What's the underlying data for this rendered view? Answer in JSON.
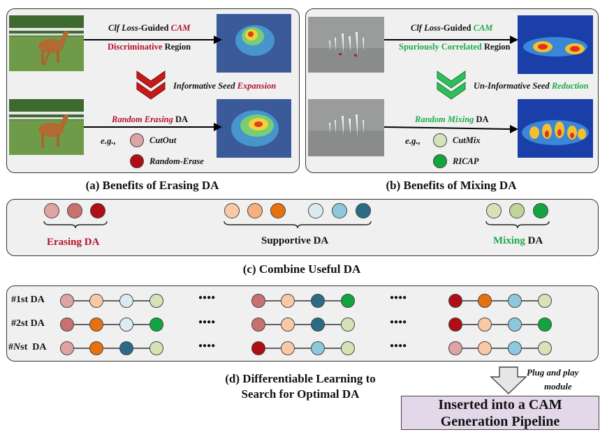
{
  "panel_a": {
    "caption": "(a) Benefits of Erasing DA",
    "top_line1": {
      "p1": "Clf Loss",
      "p2": "-Guided ",
      "p3": "CAM"
    },
    "top_line2": {
      "p1": "Discriminative",
      "p2": " Region"
    },
    "middle": {
      "p1": "Informative Seed ",
      "p2": "Expansion"
    },
    "bottom_line1": {
      "p1": "Random Erasing",
      "p2": " DA"
    },
    "eg": "e.g.,",
    "options": [
      "CutOut",
      "Random-Erase"
    ]
  },
  "panel_b": {
    "caption": "(b) Benefits of Mixing DA",
    "top_line1": {
      "p1": "Clf Loss",
      "p2": "-Guided ",
      "p3": "CAM"
    },
    "top_line2": {
      "p1": "Spuriously Correlated",
      "p2": " Region"
    },
    "middle": {
      "p1": "Un-Informative Seed ",
      "p2": "Reduction"
    },
    "bottom_line1": {
      "p1": "Random Mixing",
      "p2": " DA"
    },
    "eg": "e.g.,",
    "options": [
      "CutMix",
      "RICAP"
    ]
  },
  "panel_c": {
    "caption": "(c) Combine Useful DA",
    "erasing": {
      "p1": "Erasing DA"
    },
    "supportive": "Supportive DA",
    "mixing": {
      "p1": "Mixing",
      "p2": " DA"
    }
  },
  "panel_d": {
    "caption_line1": "(d) Differentiable Learning to",
    "caption_line2": "Search for Optimal DA",
    "rows": [
      {
        "label_pre": "#1st",
        "label_post": " DA"
      },
      {
        "label_pre": "#2st",
        "label_post": " DA"
      },
      {
        "label_pre": "#",
        "label_n": "N",
        "label_post": "st  DA"
      }
    ],
    "ellipsis": "●●●●"
  },
  "plug": {
    "line1": "Plug and play",
    "line2": "module"
  },
  "result": {
    "line1": "Inserted into a CAM",
    "line2": "Generation Pipeline"
  },
  "colors": {
    "erase1": "#e0a3a3",
    "erase2": "#c97070",
    "erase3": "#b00d14",
    "sup1": "#f9c9a6",
    "sup2": "#f5b07e",
    "sup3": "#e8710f",
    "sup4": "#dcebf2",
    "sup5": "#8ec8dc",
    "sup6": "#2b6b86",
    "mix1": "#d6e2b8",
    "mix2": "#c0d49a",
    "mix3": "#12a53f",
    "red_text": "#b3122a",
    "green_text": "#1faa4a",
    "result_bg": "#e2d8ea"
  }
}
